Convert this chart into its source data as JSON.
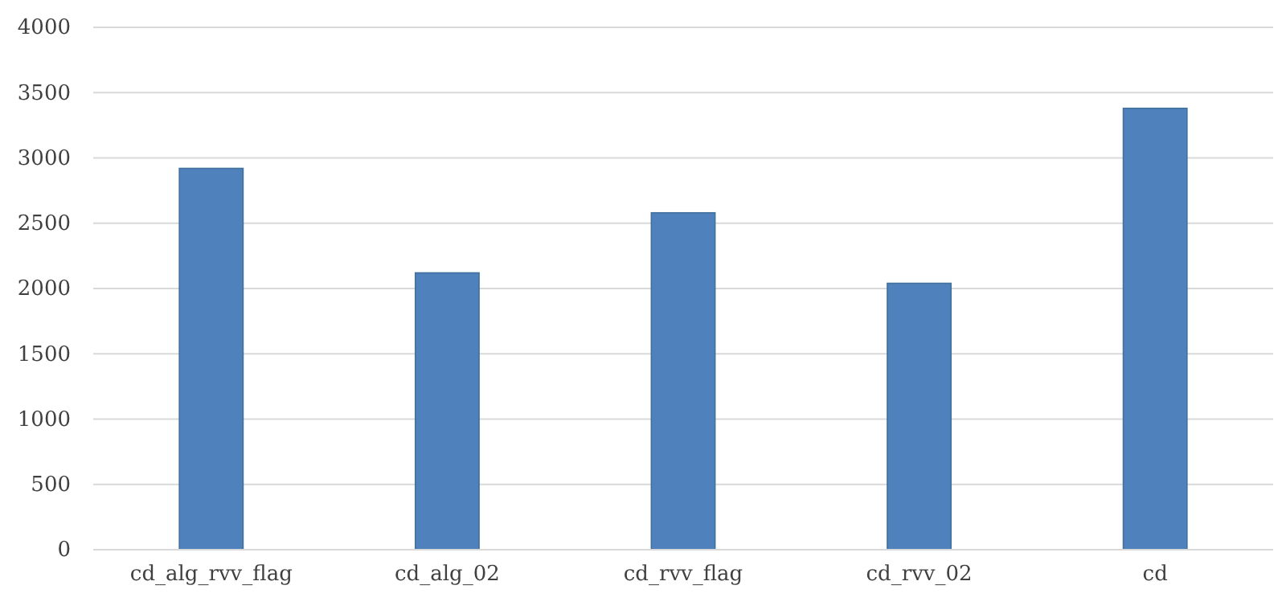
{
  "chart_data": {
    "type": "bar",
    "categories": [
      "cd_alg_rvv_flag",
      "cd_alg_02",
      "cd_rvv_flag",
      "cd_rvv_02",
      "cd"
    ],
    "values": [
      2920,
      2120,
      2580,
      2040,
      3380
    ],
    "color": "#4f81bd",
    "ylim": [
      0,
      4000
    ],
    "yticks": [
      0,
      500,
      1000,
      1500,
      2000,
      2500,
      3000,
      3500,
      4000
    ],
    "grid": "y"
  }
}
